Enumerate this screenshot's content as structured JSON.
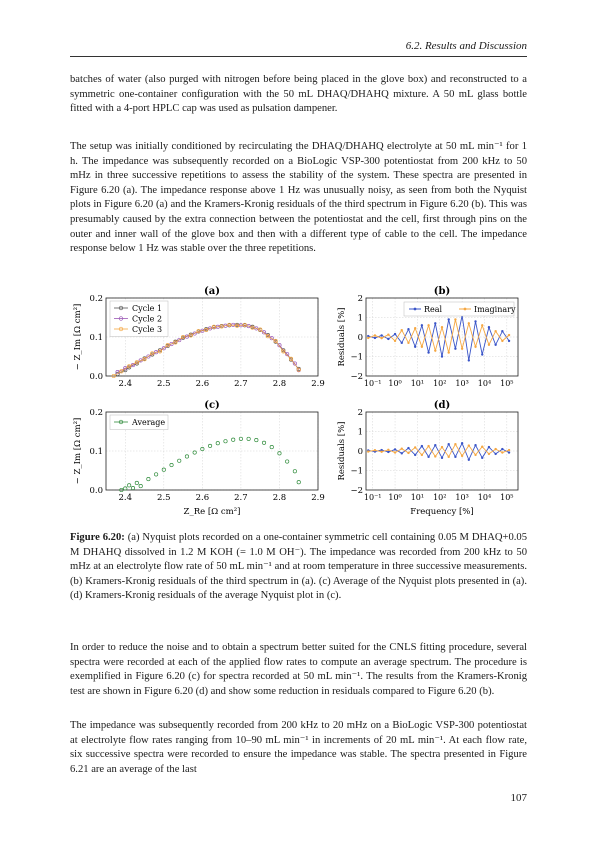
{
  "header": {
    "running_title": "6.2.  Results and Discussion"
  },
  "paragraphs": [
    "batches of water (also purged with nitrogen before being placed in the glove box) and reconstructed to a symmetric one-container configuration with the 50 mL DHAQ/DHAHQ mixture.  A 50 mL glass bottle fitted with a 4-port HPLC cap was used as pulsation dampener.",
    "The setup was initially conditioned by recirculating the DHAQ/DHAHQ electrolyte at 50 mL min⁻¹ for 1 h.  The impedance was subsequently recorded on a BioLogic VSP-300 potentiostat from 200 kHz to 50 mHz in three successive repetitions to assess the stability of the system.  These spectra are presented in Figure 6.20 (a).  The impedance response above 1 Hz was unusually noisy, as seen from both the Nyquist plots in Figure 6.20 (a) and the Kramers-Kronig residuals of the third spectrum in Figure 6.20 (b).  This was presumably caused by the extra connection between the potentiostat and the cell, first through pins on the outer and inner wall of the glove box and then with a different type of cable to the cell.  The impedance response below 1 Hz was stable over the three repetitions.",
    "In order to reduce the noise and to obtain a spectrum better suited for the CNLS fitting procedure, several spectra were recorded at each of the applied flow rates to compute an average spectrum.  The procedure is exemplified in Figure 6.20 (c) for spectra recorded at 50 mL min⁻¹.  The results from the Kramers-Kronig test are shown in Figure 6.20 (d) and show some reduction in residuals compared to Figure 6.20 (b).",
    "The impedance was subsequently recorded from 200 kHz to 20 mHz on a BioLogic VSP-300 potentiostat at electrolyte flow rates ranging from 10–90 mL min⁻¹ in increments of 20 mL min⁻¹.  At each flow rate, six successive spectra were recorded to ensure the impedance was stable.  The spectra presented in Figure 6.21 are an average of the last"
  ],
  "caption": {
    "label": "Figure 6.20:",
    "text": " (a) Nyquist plots recorded on a one-container symmetric cell containing 0.05 M DHAQ+0.05 M DHAHQ dissolved in 1.2 M KOH (= 1.0 M OH⁻).  The impedance was recorded from 200 kHz to 50 mHz at an electrolyte flow rate of 50 mL min⁻¹ and at room temperature in three successive measurements.  (b) Kramers-Kronig residuals of the third spectrum in (a).  (c) Average of the Nyquist plots presented in (a).  (d) Kramers-Kronig residuals of the average Nyquist plot in (c)."
  },
  "page_number": "107",
  "figure": {
    "colors": {
      "cycle1": "#555555",
      "cycle2": "#9b59b6",
      "cycle3": "#f5a742",
      "average": "#2e8b3a",
      "real": "#3a55c8",
      "imaginary": "#f5a742"
    },
    "nyquist_ylabel": "− Z_Im [Ω cm²]",
    "nyquist_xlabel": "Z_Re [Ω cm²]",
    "residual_ylabel": "Residuals [%]",
    "residual_xlabel": "Frequency [%]",
    "residual_xtick_labels": [
      "10⁻¹",
      "10⁰",
      "10¹",
      "10²",
      "10³",
      "10⁴",
      "10⁵"
    ]
  },
  "chart_data": [
    {
      "type": "scatter",
      "panel_label": "(a)",
      "xlim": [
        2.35,
        2.9
      ],
      "ylim": [
        0,
        0.2
      ],
      "xticks": [
        "2.4",
        "2.5",
        "2.6",
        "2.7",
        "2.8",
        "2.9"
      ],
      "yticks": [
        "0.0",
        "0.1",
        "0.2"
      ],
      "legend_position": "top-left",
      "series": [
        {
          "name": "Cycle 1",
          "x": [
            2.38,
            2.4,
            2.41,
            2.43,
            2.45,
            2.47,
            2.49,
            2.51,
            2.53,
            2.55,
            2.57,
            2.59,
            2.61,
            2.63,
            2.65,
            2.67,
            2.69,
            2.71,
            2.73,
            2.75,
            2.77,
            2.79,
            2.81,
            2.83,
            2.85
          ],
          "y": [
            0.005,
            0.015,
            0.022,
            0.032,
            0.045,
            0.055,
            0.066,
            0.077,
            0.088,
            0.098,
            0.106,
            0.114,
            0.12,
            0.125,
            0.128,
            0.13,
            0.131,
            0.13,
            0.126,
            0.118,
            0.105,
            0.088,
            0.066,
            0.042,
            0.018
          ]
        },
        {
          "name": "Cycle 2",
          "x": [
            2.38,
            2.4,
            2.42,
            2.44,
            2.46,
            2.48,
            2.5,
            2.52,
            2.54,
            2.56,
            2.58,
            2.6,
            2.62,
            2.64,
            2.66,
            2.68,
            2.7,
            2.72,
            2.74,
            2.76,
            2.78,
            2.8,
            2.82,
            2.84,
            2.85
          ],
          "y": [
            0.01,
            0.02,
            0.028,
            0.04,
            0.05,
            0.061,
            0.071,
            0.082,
            0.092,
            0.101,
            0.109,
            0.116,
            0.122,
            0.126,
            0.129,
            0.131,
            0.13,
            0.128,
            0.122,
            0.112,
            0.097,
            0.079,
            0.056,
            0.032,
            0.015
          ]
        },
        {
          "name": "Cycle 3",
          "x": [
            2.37,
            2.39,
            2.41,
            2.43,
            2.45,
            2.47,
            2.49,
            2.51,
            2.53,
            2.55,
            2.57,
            2.59,
            2.61,
            2.63,
            2.65,
            2.67,
            2.69,
            2.71,
            2.73,
            2.75,
            2.77,
            2.79,
            2.81,
            2.83,
            2.85
          ],
          "y": [
            0.0,
            0.012,
            0.025,
            0.035,
            0.043,
            0.058,
            0.063,
            0.079,
            0.086,
            0.1,
            0.104,
            0.115,
            0.118,
            0.126,
            0.127,
            0.131,
            0.129,
            0.131,
            0.124,
            0.119,
            0.102,
            0.09,
            0.063,
            0.044,
            0.016
          ]
        }
      ]
    },
    {
      "type": "line",
      "panel_label": "(b)",
      "xlim": [
        -1.3,
        5.5
      ],
      "ylim": [
        -2,
        2
      ],
      "yticks": [
        "−2",
        "−1",
        "0",
        "1",
        "2"
      ],
      "legend_position": "top-right",
      "series": [
        {
          "name": "Real",
          "x": [
            -1.2,
            -0.9,
            -0.6,
            -0.3,
            0.0,
            0.3,
            0.6,
            0.9,
            1.2,
            1.5,
            1.8,
            2.1,
            2.4,
            2.7,
            3.0,
            3.3,
            3.6,
            3.9,
            4.2,
            4.5,
            4.8,
            5.1
          ],
          "y": [
            0.05,
            -0.05,
            0.08,
            -0.1,
            0.15,
            -0.3,
            0.4,
            -0.5,
            0.6,
            -0.8,
            0.7,
            -1.0,
            0.9,
            -0.6,
            1.1,
            -1.2,
            0.8,
            -0.9,
            0.5,
            -0.4,
            0.3,
            -0.2
          ]
        },
        {
          "name": "Imaginary",
          "x": [
            -1.2,
            -0.9,
            -0.6,
            -0.3,
            0.0,
            0.3,
            0.6,
            0.9,
            1.2,
            1.5,
            1.8,
            2.1,
            2.4,
            2.7,
            3.0,
            3.3,
            3.6,
            3.9,
            4.2,
            4.5,
            4.8,
            5.1
          ],
          "y": [
            -0.05,
            0.08,
            -0.06,
            0.12,
            -0.2,
            0.35,
            -0.3,
            0.45,
            -0.5,
            0.6,
            -0.7,
            0.5,
            -0.8,
            0.9,
            -0.6,
            0.7,
            -0.5,
            0.6,
            -0.4,
            0.3,
            -0.2,
            0.1
          ]
        }
      ]
    },
    {
      "type": "scatter",
      "panel_label": "(c)",
      "xlim": [
        2.35,
        2.9
      ],
      "ylim": [
        0,
        0.2
      ],
      "xticks": [
        "2.4",
        "2.5",
        "2.6",
        "2.7",
        "2.8",
        "2.9"
      ],
      "yticks": [
        "0.0",
        "0.1",
        "0.2"
      ],
      "legend_position": "top-left",
      "series": [
        {
          "name": "Average",
          "x": [
            2.39,
            2.4,
            2.41,
            2.42,
            2.43,
            2.44,
            2.46,
            2.48,
            2.5,
            2.52,
            2.54,
            2.56,
            2.58,
            2.6,
            2.62,
            2.64,
            2.66,
            2.68,
            2.7,
            2.72,
            2.74,
            2.76,
            2.78,
            2.8,
            2.82,
            2.84,
            2.85
          ],
          "y": [
            0.0,
            0.004,
            0.012,
            0.005,
            0.018,
            0.01,
            0.028,
            0.04,
            0.052,
            0.064,
            0.075,
            0.086,
            0.096,
            0.105,
            0.113,
            0.12,
            0.125,
            0.129,
            0.131,
            0.131,
            0.128,
            0.121,
            0.11,
            0.094,
            0.073,
            0.048,
            0.02
          ]
        }
      ]
    },
    {
      "type": "line",
      "panel_label": "(d)",
      "xlim": [
        -1.3,
        5.5
      ],
      "ylim": [
        -2,
        2
      ],
      "yticks": [
        "−2",
        "−1",
        "0",
        "1",
        "2"
      ],
      "series": [
        {
          "x": [
            -1.2,
            -0.9,
            -0.6,
            -0.3,
            0.0,
            0.3,
            0.6,
            0.9,
            1.2,
            1.5,
            1.8,
            2.1,
            2.4,
            2.7,
            3.0,
            3.3,
            3.6,
            3.9,
            4.2,
            4.5,
            4.8,
            5.1
          ],
          "y": [
            0.03,
            -0.03,
            0.05,
            -0.05,
            0.08,
            -0.12,
            0.15,
            -0.2,
            0.25,
            -0.3,
            0.3,
            -0.35,
            0.35,
            -0.3,
            0.4,
            -0.45,
            0.3,
            -0.35,
            0.2,
            -0.15,
            0.1,
            -0.08
          ]
        },
        {
          "x": [
            -1.2,
            -0.9,
            -0.6,
            -0.3,
            0.0,
            0.3,
            0.6,
            0.9,
            1.2,
            1.5,
            1.8,
            2.1,
            2.4,
            2.7,
            3.0,
            3.3,
            3.6,
            3.9,
            4.2,
            4.5,
            4.8,
            5.1
          ],
          "y": [
            -0.03,
            0.04,
            -0.04,
            0.06,
            -0.08,
            0.12,
            -0.1,
            0.18,
            -0.2,
            0.25,
            -0.28,
            0.2,
            -0.3,
            0.35,
            -0.25,
            0.28,
            -0.2,
            0.22,
            -0.15,
            0.1,
            -0.08,
            0.05
          ]
        }
      ]
    }
  ]
}
